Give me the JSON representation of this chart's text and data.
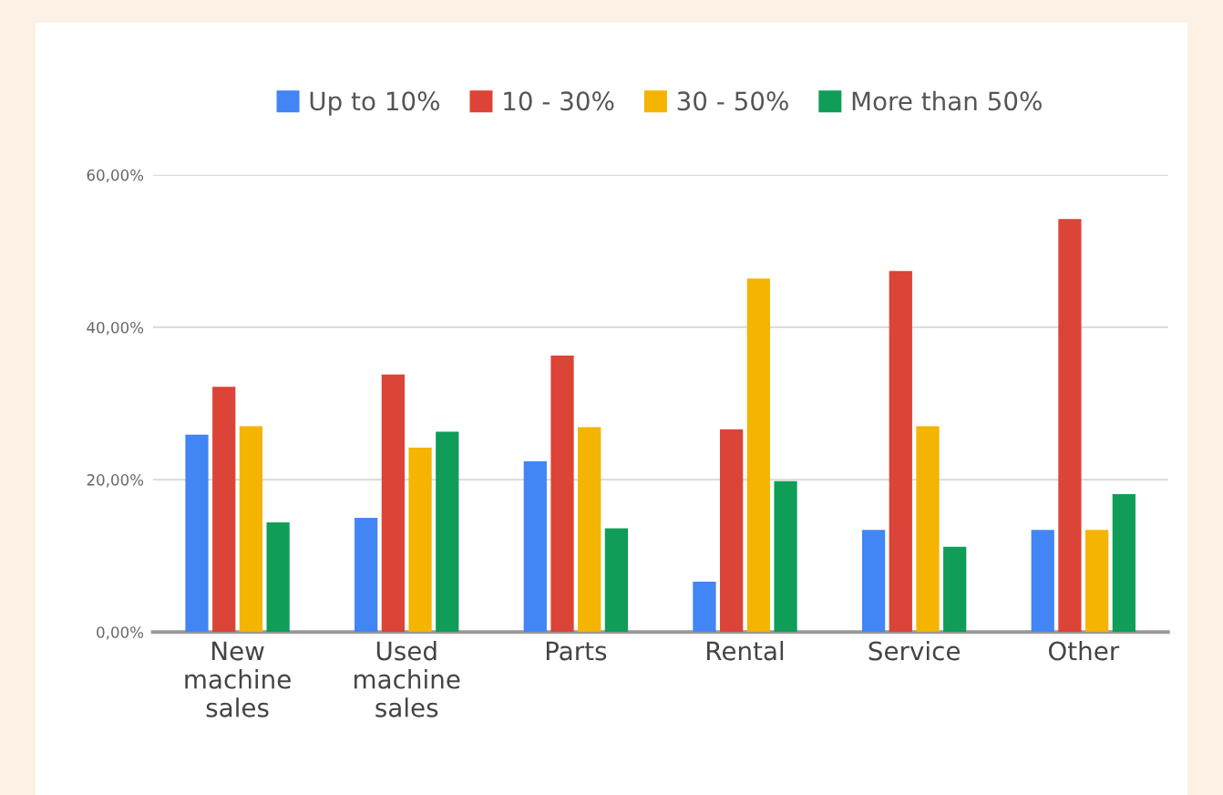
{
  "chart_data": {
    "type": "bar",
    "categories": [
      "New\nmachine\nsales",
      "Used\nmachine\nsales",
      "Parts",
      "Rental",
      "Service",
      "Other"
    ],
    "series": [
      {
        "name": "Up to 10%",
        "color": "#4285f4",
        "values": [
          25.9,
          15.0,
          22.4,
          6.6,
          13.4,
          13.4
        ]
      },
      {
        "name": "10 - 30%",
        "color": "#db4437",
        "values": [
          32.2,
          33.8,
          36.3,
          26.6,
          47.4,
          54.2
        ]
      },
      {
        "name": "30 - 50%",
        "color": "#f4b400",
        "values": [
          27.0,
          24.2,
          26.9,
          46.4,
          27.0,
          13.4
        ]
      },
      {
        "name": "More than 50%",
        "color": "#0f9d58",
        "values": [
          14.4,
          26.3,
          13.6,
          19.8,
          11.2,
          18.1
        ]
      }
    ],
    "ylim": [
      0,
      60
    ],
    "yticks": [
      {
        "value": 0,
        "label": "0,00%"
      },
      {
        "value": 20,
        "label": "20,00%"
      },
      {
        "value": 40,
        "label": "40,00%"
      },
      {
        "value": 60,
        "label": "60,00%"
      }
    ],
    "grid": "y",
    "legend": "top"
  }
}
